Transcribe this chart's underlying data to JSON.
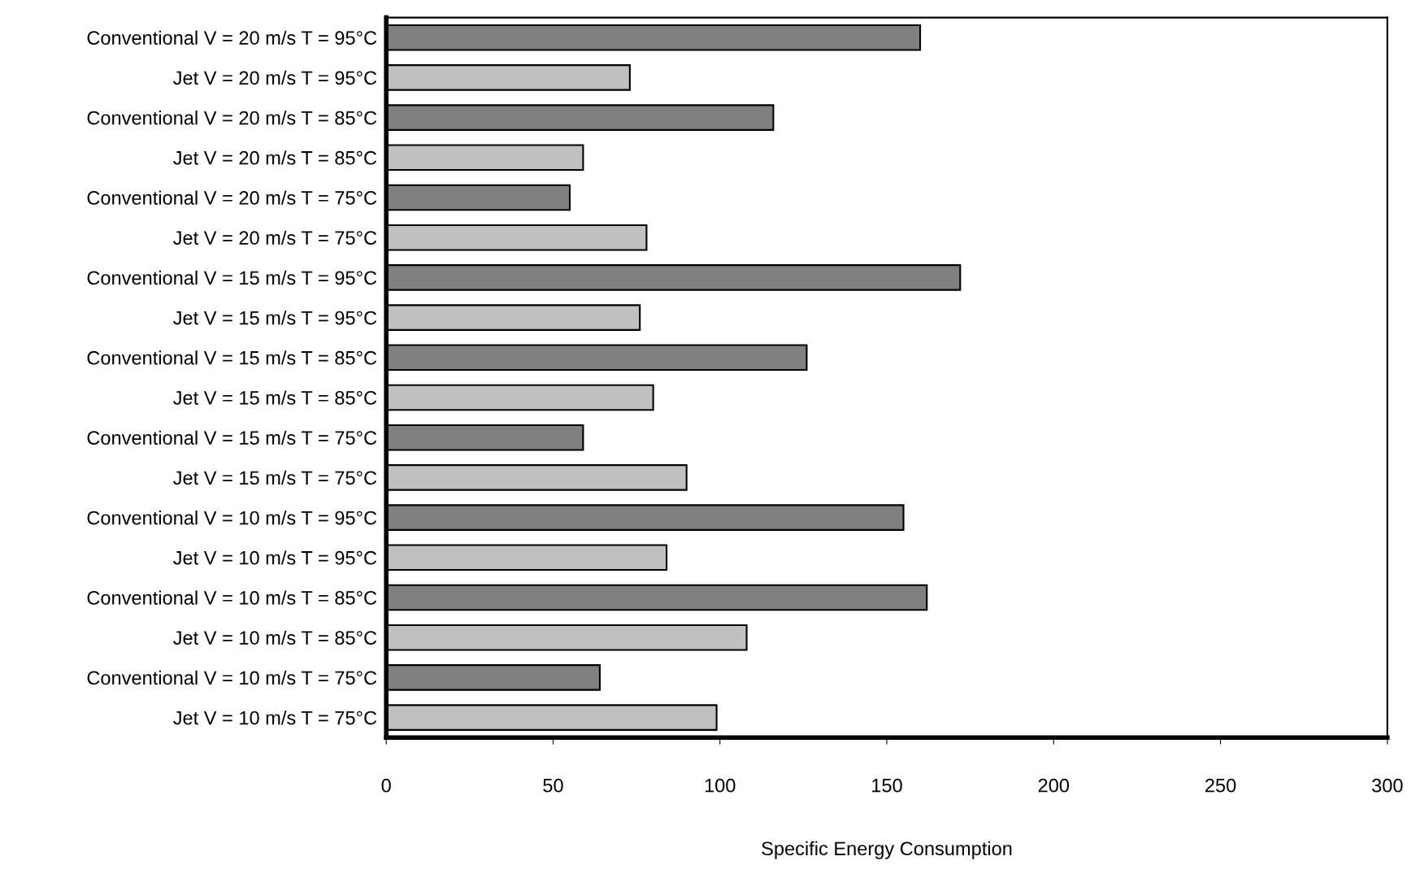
{
  "chart_data": {
    "type": "bar",
    "orientation": "horizontal",
    "xlabel": "Specific Energy Consumption",
    "categories": [
      "Conventional V = 20 m/s T = 95°C",
      "Jet V = 20 m/s T = 95°C",
      "Conventional V = 20 m/s T = 85°C",
      "Jet V = 20 m/s T = 85°C",
      "Conventional V = 20 m/s T = 75°C",
      "Jet V = 20 m/s T = 75°C",
      "Conventional V = 15 m/s T = 95°C",
      "Jet V = 15 m/s T = 95°C",
      "Conventional V = 15 m/s T = 85°C",
      "Jet V = 15 m/s T = 85°C",
      "Conventional V = 15 m/s T = 75°C",
      "Jet V = 15 m/s T = 75°C",
      "Conventional V = 10 m/s T = 95°C",
      "Jet V = 10 m/s T = 95°C",
      "Conventional V = 10 m/s T = 85°C",
      "Jet V = 10 m/s T = 85°C",
      "Conventional V = 10 m/s T = 75°C",
      "Jet V = 10 m/s T = 75°C"
    ],
    "values": [
      160,
      73,
      116,
      59,
      55,
      78,
      172,
      76,
      126,
      80,
      59,
      90,
      155,
      84,
      162,
      108,
      64,
      99
    ],
    "colors": [
      "#808080",
      "#c0c0c0",
      "#808080",
      "#c0c0c0",
      "#808080",
      "#c0c0c0",
      "#808080",
      "#c0c0c0",
      "#808080",
      "#c0c0c0",
      "#808080",
      "#c0c0c0",
      "#808080",
      "#c0c0c0",
      "#808080",
      "#c0c0c0",
      "#808080",
      "#c0c0c0"
    ],
    "xlim": [
      0,
      300
    ],
    "xticks": [
      0,
      50,
      100,
      150,
      200,
      250,
      300
    ],
    "grid": false,
    "legend": false
  }
}
